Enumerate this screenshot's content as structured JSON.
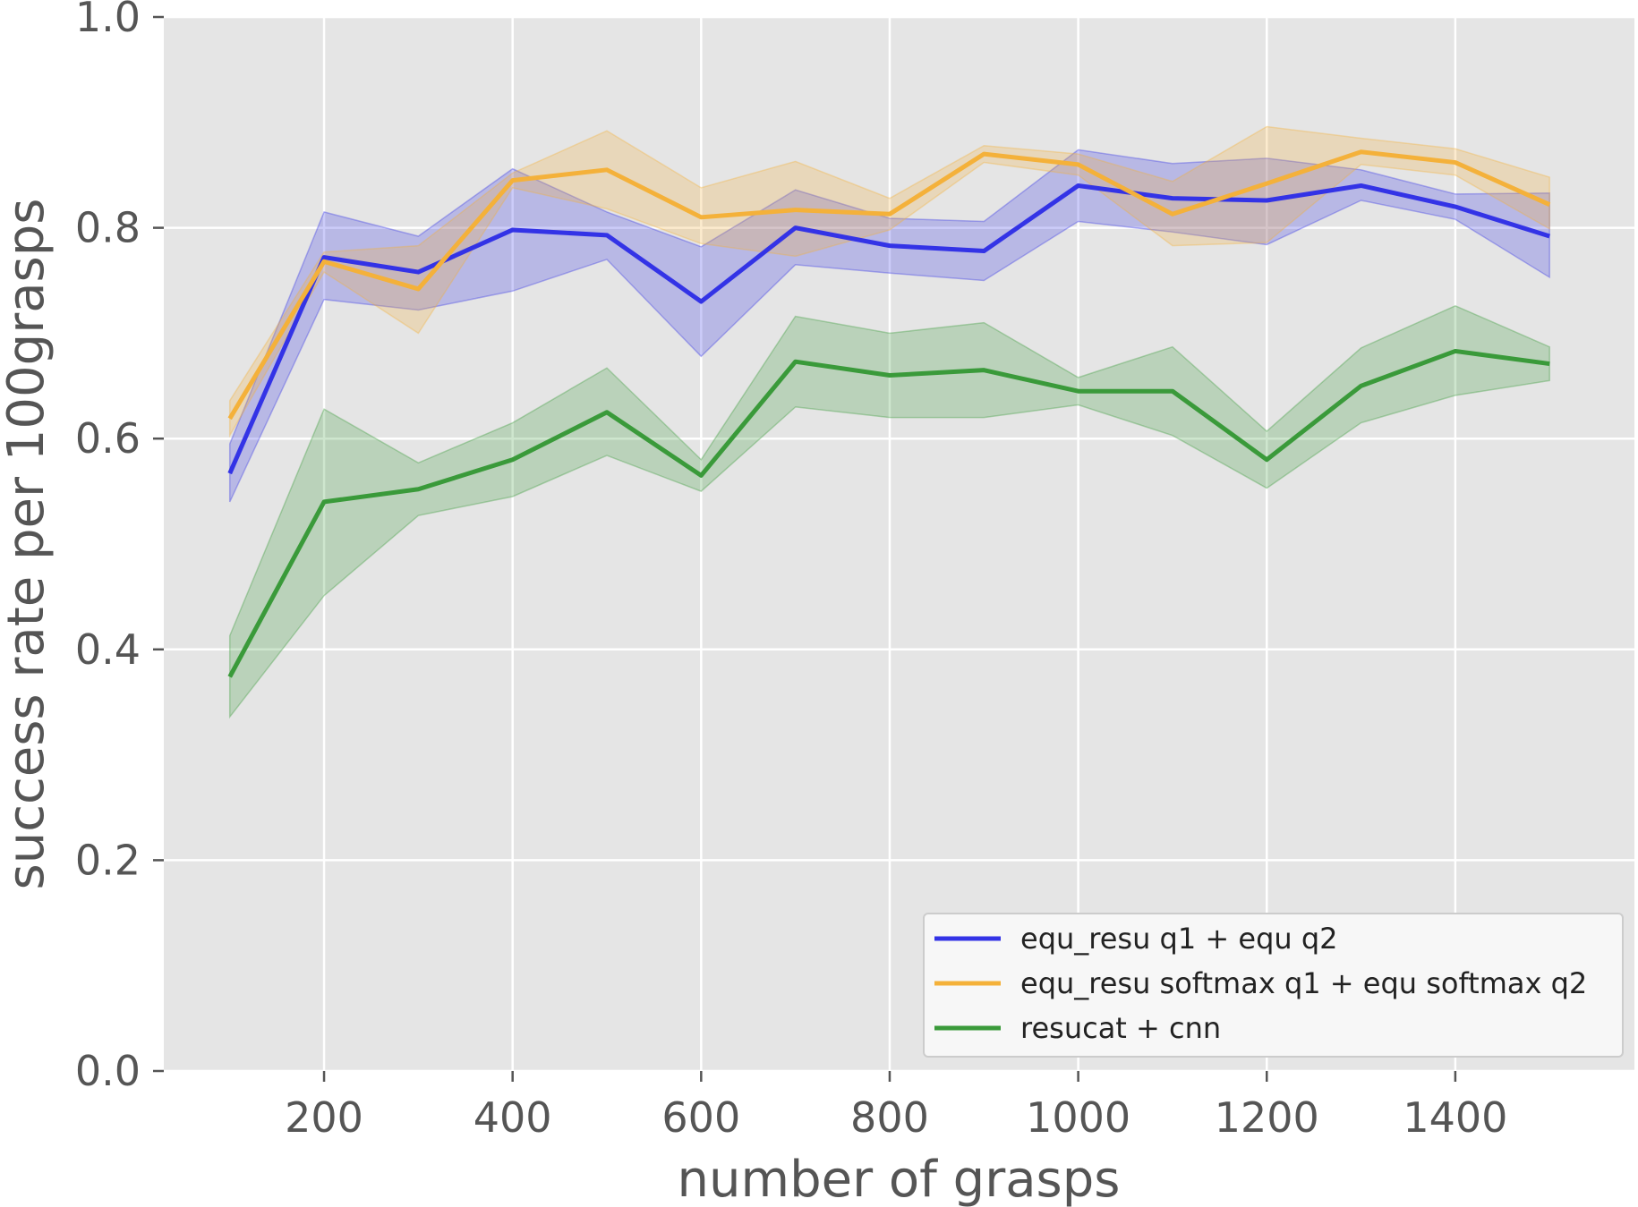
{
  "chart_data": {
    "type": "line",
    "xlabel": "number of grasps",
    "ylabel": "success rate per 100grasps",
    "xlim": [
      30,
      1590
    ],
    "ylim": [
      0.0,
      1.0
    ],
    "xticks": [
      200,
      400,
      600,
      800,
      1000,
      1200,
      1400
    ],
    "yticks": [
      0.0,
      0.2,
      0.4,
      0.6,
      0.8,
      1.0
    ],
    "ytick_labels": [
      "0.0",
      "0.2",
      "0.4",
      "0.6",
      "0.8",
      "1.0"
    ],
    "grid": true,
    "legend_position": "lower-right",
    "x": [
      100,
      200,
      300,
      400,
      500,
      600,
      700,
      800,
      900,
      1000,
      1100,
      1200,
      1300,
      1400,
      1500
    ],
    "series": [
      {
        "name": "equ_resu q1 + equ q2",
        "color": "#3333e6",
        "values": [
          0.567,
          0.772,
          0.758,
          0.798,
          0.793,
          0.73,
          0.8,
          0.783,
          0.778,
          0.84,
          0.828,
          0.826,
          0.84,
          0.82,
          0.792
        ],
        "lower": [
          0.54,
          0.732,
          0.722,
          0.74,
          0.77,
          0.678,
          0.765,
          0.757,
          0.75,
          0.806,
          0.796,
          0.784,
          0.826,
          0.808,
          0.753
        ],
        "upper": [
          0.595,
          0.815,
          0.792,
          0.856,
          0.815,
          0.782,
          0.836,
          0.809,
          0.806,
          0.874,
          0.861,
          0.866,
          0.855,
          0.832,
          0.833
        ]
      },
      {
        "name": "equ_resu softmax q1 + equ softmax q2",
        "color": "#f4b13a",
        "values": [
          0.619,
          0.768,
          0.742,
          0.845,
          0.855,
          0.81,
          0.817,
          0.813,
          0.87,
          0.86,
          0.813,
          0.842,
          0.872,
          0.862,
          0.822
        ],
        "lower": [
          0.603,
          0.758,
          0.7,
          0.838,
          0.818,
          0.785,
          0.773,
          0.798,
          0.862,
          0.85,
          0.783,
          0.786,
          0.86,
          0.85,
          0.799
        ],
        "upper": [
          0.636,
          0.777,
          0.783,
          0.852,
          0.892,
          0.838,
          0.863,
          0.828,
          0.878,
          0.87,
          0.844,
          0.896,
          0.885,
          0.875,
          0.848
        ]
      },
      {
        "name": "resucat + cnn",
        "color": "#3a9a3a",
        "values": [
          0.374,
          0.54,
          0.552,
          0.58,
          0.625,
          0.565,
          0.673,
          0.66,
          0.665,
          0.645,
          0.645,
          0.58,
          0.65,
          0.683,
          0.671
        ],
        "lower": [
          0.336,
          0.451,
          0.527,
          0.545,
          0.584,
          0.55,
          0.63,
          0.62,
          0.62,
          0.632,
          0.603,
          0.553,
          0.615,
          0.641,
          0.655
        ],
        "upper": [
          0.413,
          0.628,
          0.577,
          0.615,
          0.667,
          0.58,
          0.716,
          0.7,
          0.71,
          0.658,
          0.687,
          0.607,
          0.686,
          0.726,
          0.687
        ]
      }
    ]
  }
}
